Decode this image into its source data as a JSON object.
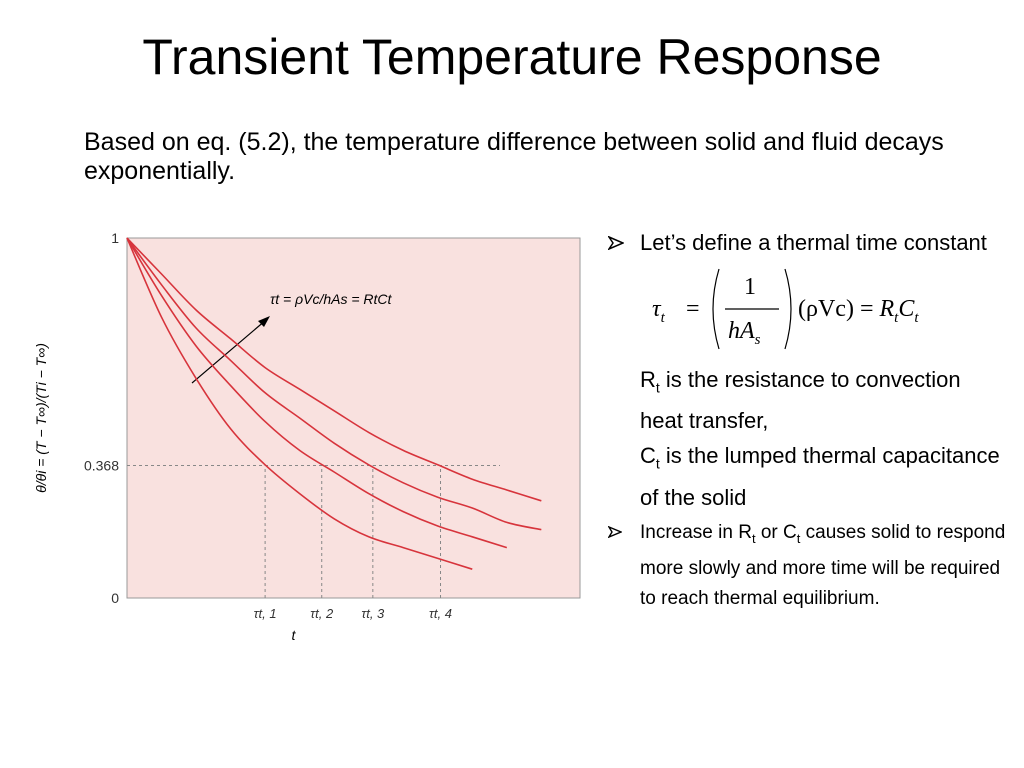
{
  "title": "Transient Temperature Response",
  "intro": "Based on eq. (5.2), the temperature difference between solid and fluid decays exponentially.",
  "chart_data": {
    "type": "line",
    "y_label": "θ/θi = (T − T∞)/(Ti − T∞)",
    "x_label": "t",
    "annotation": "τt = ρVc/hAs = RtCt",
    "background": "#f9e1df",
    "x": [
      0,
      0.25,
      0.5,
      0.75,
      1,
      1.25,
      1.5,
      1.75,
      2,
      2.25,
      2.5,
      2.75,
      3
    ],
    "xlim": [
      0,
      3.28
    ],
    "xticks": [
      {
        "value": 1,
        "label": "τt, 1"
      },
      {
        "value": 1.41,
        "label": "τt, 2"
      },
      {
        "value": 1.78,
        "label": "τt, 3"
      },
      {
        "value": 2.27,
        "label": "τt, 4"
      }
    ],
    "ylim": [
      0,
      1
    ],
    "yticks": [
      0,
      0.368,
      1
    ],
    "series": [
      {
        "color": "#d7343c",
        "values": [
          1,
          0.78,
          0.61,
          0.47,
          0.37,
          0.29,
          0.22,
          0.17,
          0.14,
          0.11,
          0.08,
          null,
          null
        ]
      },
      {
        "color": "#d7343c",
        "values": [
          1,
          0.84,
          0.7,
          0.59,
          0.49,
          0.41,
          0.35,
          0.29,
          0.24,
          0.2,
          0.17,
          0.14,
          null
        ]
      },
      {
        "color": "#d7343c",
        "values": [
          1,
          0.87,
          0.75,
          0.66,
          0.57,
          0.5,
          0.43,
          0.37,
          0.32,
          0.28,
          0.25,
          0.21,
          0.19
        ]
      },
      {
        "color": "#d7343c",
        "values": [
          1,
          0.9,
          0.8,
          0.72,
          0.64,
          0.58,
          0.52,
          0.46,
          0.41,
          0.37,
          0.33,
          0.3,
          0.27
        ]
      }
    ]
  },
  "definition": {
    "lead": "Let’s define a thermal time constant",
    "formula": {
      "lhs": "τ",
      "lhs_sub": "t",
      "eq": "=",
      "num": "1",
      "den": "hA",
      "den_sub": "s",
      "factor": "(ρVc)",
      "eq2": "=",
      "r": "R",
      "r_sub": "t",
      "c": "C",
      "c_sub": "t"
    },
    "notes": [
      {
        "sym": "R",
        "sub": "t",
        "text": " is the resistance to convection heat transfer,"
      },
      {
        "sym": "C",
        "sub": "t",
        "text": " is the lumped thermal capacitance of the solid"
      }
    ]
  },
  "bullet2": [
    "Increase in R",
    "t",
    " or C",
    "t",
    " causes solid to respond more slowly and more time will be required to reach thermal equilibrium."
  ]
}
